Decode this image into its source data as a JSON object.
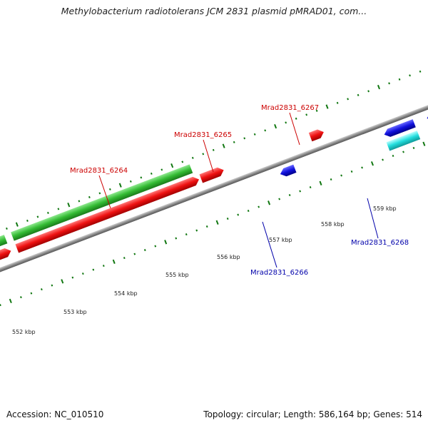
{
  "title": "Methylobacterium radiotolerans JCM 2831 plasmid pMRAD01, com...",
  "footer": {
    "accession": "Accession: NC_010510",
    "summary": "Topology: circular; Length: 586,164 bp; Genes: 514"
  },
  "colors": {
    "forward_gene": "#ee1111",
    "reverse_gene": "#1111dd",
    "rna_gene": "#22dddd",
    "cds_feature": "#33bb33",
    "tick": "#117711",
    "backbone": "#888888",
    "label_forward": "#cc0000",
    "label_reverse": "#0000aa"
  },
  "scale": {
    "unit": "kbp",
    "labels": [
      "552 kbp",
      "553 kbp",
      "554 kbp",
      "555 kbp",
      "556 kbp",
      "557 kbp",
      "558 kbp",
      "559 kbp"
    ]
  },
  "gene_labels": [
    {
      "text": "Mrad2831_6264",
      "strand": "forward"
    },
    {
      "text": "Mrad2831_6265",
      "strand": "forward"
    },
    {
      "text": "Mrad2831_6267",
      "strand": "forward"
    },
    {
      "text": "Mrad2831_6266",
      "strand": "reverse"
    },
    {
      "text": "Mrad2831_6268",
      "strand": "reverse"
    }
  ]
}
